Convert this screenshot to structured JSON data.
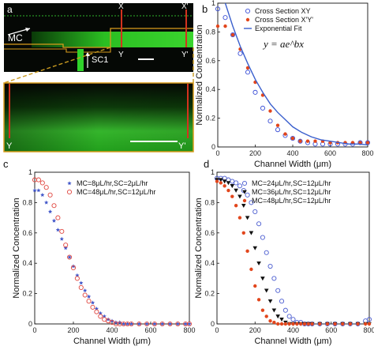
{
  "panels": {
    "a": {
      "label": "a",
      "mc_label": "MC",
      "sc_label": "SC1",
      "section_labels": {
        "x": "X",
        "x_prime": "X'",
        "y": "Y",
        "y_prime": "Y'"
      },
      "colors": {
        "green": "#22c21e",
        "red": "#d4321e",
        "orange": "#d99c1c",
        "dark": "#050805"
      }
    },
    "b": {
      "label": "b"
    },
    "c": {
      "label": "c"
    },
    "d": {
      "label": "d"
    }
  },
  "chart_data": [
    {
      "id": "b",
      "type": "scatter",
      "title": "",
      "xlabel": "Channel Width (μm)",
      "ylabel": "Normalized Concentration",
      "xlim": [
        0,
        800
      ],
      "ylim": [
        0,
        1
      ],
      "xticks": [
        "0",
        "200",
        "400",
        "600",
        "800"
      ],
      "yticks": [
        "0",
        "0.2",
        "0.4",
        "0.6",
        "0.8",
        "1"
      ],
      "equation": "y = ae^bx",
      "legend_position": "top-right",
      "series": [
        {
          "name": "Cross Section XY",
          "marker": "open-circle",
          "color": "#3b4fd6",
          "x": [
            0,
            40,
            80,
            120,
            160,
            200,
            240,
            280,
            320,
            360,
            400,
            440,
            480,
            520,
            560,
            600,
            640,
            680,
            720,
            760,
            800
          ],
          "y": [
            0.96,
            0.9,
            0.78,
            0.65,
            0.52,
            0.38,
            0.27,
            0.18,
            0.12,
            0.08,
            0.06,
            0.04,
            0.03,
            0.02,
            0.02,
            0.02,
            0.02,
            0.02,
            0.02,
            0.03,
            0.03
          ]
        },
        {
          "name": "Cross Section X'Y'",
          "marker": "filled-dot",
          "color": "#e2461c",
          "x": [
            0,
            40,
            80,
            120,
            160,
            200,
            240,
            280,
            320,
            360,
            400,
            440,
            480,
            520,
            560,
            600,
            640,
            680,
            720,
            760,
            800
          ],
          "y": [
            0.84,
            0.84,
            0.78,
            0.68,
            0.55,
            0.45,
            0.36,
            0.25,
            0.15,
            0.09,
            0.06,
            0.04,
            0.04,
            0.04,
            0.04,
            0.03,
            0.03,
            0.03,
            0.03,
            0.03,
            0.03
          ]
        },
        {
          "name": "Exponential Fit",
          "marker": "line",
          "color": "#3a5fcd",
          "x": [
            40,
            60,
            80,
            120,
            160,
            200,
            240,
            280,
            320,
            360,
            400,
            450,
            500,
            550,
            600,
            650,
            700,
            750,
            800
          ],
          "y": [
            1.0,
            0.92,
            0.84,
            0.7,
            0.58,
            0.47,
            0.38,
            0.3,
            0.24,
            0.19,
            0.14,
            0.1,
            0.07,
            0.05,
            0.04,
            0.03,
            0.02,
            0.02,
            0.015
          ]
        }
      ]
    },
    {
      "id": "c",
      "type": "scatter",
      "title": "",
      "xlabel": "Channel Width (μm)",
      "ylabel": "Normalized Concentration",
      "xlim": [
        0,
        800
      ],
      "ylim": [
        0,
        1
      ],
      "xticks": [
        "0",
        "200",
        "400",
        "600",
        "800"
      ],
      "yticks": [
        "0",
        "0.2",
        "0.4",
        "0.6",
        "0.8",
        "1"
      ],
      "legend_position": "top-right",
      "series": [
        {
          "name": "MC=8μL/hr,SC=2μL/hr",
          "marker": "star",
          "color": "#4257c9",
          "x": [
            0,
            20,
            40,
            60,
            80,
            100,
            120,
            140,
            160,
            180,
            200,
            220,
            240,
            260,
            280,
            300,
            320,
            340,
            360,
            380,
            400,
            420,
            440,
            460,
            480,
            500,
            540,
            580,
            620,
            660,
            700,
            740,
            780,
            800
          ],
          "y": [
            0.88,
            0.88,
            0.85,
            0.8,
            0.74,
            0.68,
            0.62,
            0.56,
            0.5,
            0.44,
            0.38,
            0.32,
            0.27,
            0.22,
            0.18,
            0.14,
            0.1,
            0.07,
            0.05,
            0.03,
            0.02,
            0.01,
            0.01,
            0.0,
            0.0,
            0.0,
            0.0,
            0.0,
            0.0,
            0.0,
            0.0,
            0.0,
            0.0,
            0.0
          ]
        },
        {
          "name": "MC=48μL/hr,SC=12μL/hr",
          "marker": "open-circle",
          "color": "#e0453e",
          "x": [
            0,
            20,
            40,
            60,
            80,
            100,
            120,
            140,
            160,
            180,
            200,
            220,
            240,
            260,
            280,
            300,
            320,
            340,
            360,
            380,
            400,
            420,
            440,
            460,
            480,
            500,
            540,
            580,
            620,
            660,
            700,
            740,
            780,
            800
          ],
          "y": [
            0.95,
            0.95,
            0.93,
            0.9,
            0.85,
            0.78,
            0.7,
            0.61,
            0.52,
            0.44,
            0.37,
            0.3,
            0.24,
            0.19,
            0.15,
            0.11,
            0.08,
            0.05,
            0.03,
            0.02,
            0.01,
            0.0,
            0.0,
            0.0,
            0.0,
            0.0,
            0.0,
            0.0,
            0.0,
            0.0,
            0.0,
            0.0,
            0.0,
            0.0
          ]
        }
      ]
    },
    {
      "id": "d",
      "type": "scatter",
      "title": "",
      "xlabel": "Channel Width (μm)",
      "ylabel": "Normalized Concentration",
      "xlim": [
        0,
        800
      ],
      "ylim": [
        0,
        1
      ],
      "xticks": [
        "0",
        "200",
        "400",
        "600",
        "800"
      ],
      "yticks": [
        "0",
        "0.2",
        "0.4",
        "0.6",
        "0.8",
        "1"
      ],
      "legend_position": "top-right",
      "series": [
        {
          "name": "MC=24μL/hr,SC=12μL/hr",
          "marker": "open-circle",
          "color": "#4a5cd0",
          "x": [
            0,
            20,
            40,
            60,
            80,
            100,
            120,
            140,
            160,
            180,
            200,
            220,
            240,
            260,
            280,
            300,
            320,
            340,
            360,
            380,
            400,
            420,
            440,
            460,
            480,
            500,
            540,
            580,
            620,
            660,
            700,
            740,
            780,
            800
          ],
          "y": [
            0.96,
            0.96,
            0.96,
            0.95,
            0.94,
            0.93,
            0.91,
            0.88,
            0.85,
            0.8,
            0.74,
            0.66,
            0.57,
            0.47,
            0.38,
            0.3,
            0.22,
            0.15,
            0.09,
            0.05,
            0.03,
            0.01,
            0.01,
            0.0,
            0.0,
            0.0,
            0.0,
            0.0,
            0.0,
            0.0,
            0.0,
            0.0,
            0.02,
            0.03
          ]
        },
        {
          "name": "MC=36μL/hr,SC=12μL/hr",
          "marker": "filled-triangle",
          "color": "#111111",
          "x": [
            0,
            20,
            40,
            60,
            80,
            100,
            120,
            140,
            160,
            180,
            200,
            220,
            240,
            260,
            280,
            300,
            320,
            340,
            360,
            380,
            400,
            420,
            440,
            460,
            480,
            500,
            540,
            580,
            620,
            660,
            700,
            740,
            780,
            800
          ],
          "y": [
            0.95,
            0.95,
            0.94,
            0.93,
            0.91,
            0.88,
            0.84,
            0.78,
            0.7,
            0.6,
            0.5,
            0.4,
            0.3,
            0.22,
            0.15,
            0.09,
            0.05,
            0.03,
            0.01,
            0.0,
            0.0,
            0.0,
            0.0,
            0.0,
            0.0,
            0.0,
            0.0,
            0.0,
            0.0,
            0.0,
            0.0,
            0.0,
            0.0,
            0.0
          ]
        },
        {
          "name": "MC=48μL/hr,SC=12μL/hr",
          "marker": "filled-dot",
          "color": "#e2461c",
          "x": [
            0,
            20,
            40,
            60,
            80,
            100,
            120,
            140,
            160,
            180,
            200,
            220,
            240,
            260,
            280,
            300,
            320,
            340,
            360,
            380,
            400,
            420,
            440,
            460,
            480,
            500,
            540,
            580,
            620,
            660,
            700,
            740,
            780,
            800
          ],
          "y": [
            0.94,
            0.93,
            0.91,
            0.88,
            0.84,
            0.78,
            0.7,
            0.6,
            0.48,
            0.36,
            0.25,
            0.16,
            0.09,
            0.05,
            0.02,
            0.01,
            0.0,
            0.0,
            0.0,
            0.0,
            0.0,
            0.0,
            0.0,
            0.0,
            0.0,
            0.0,
            0.0,
            0.0,
            0.0,
            0.0,
            0.0,
            0.0,
            0.0,
            0.0
          ]
        }
      ]
    }
  ]
}
